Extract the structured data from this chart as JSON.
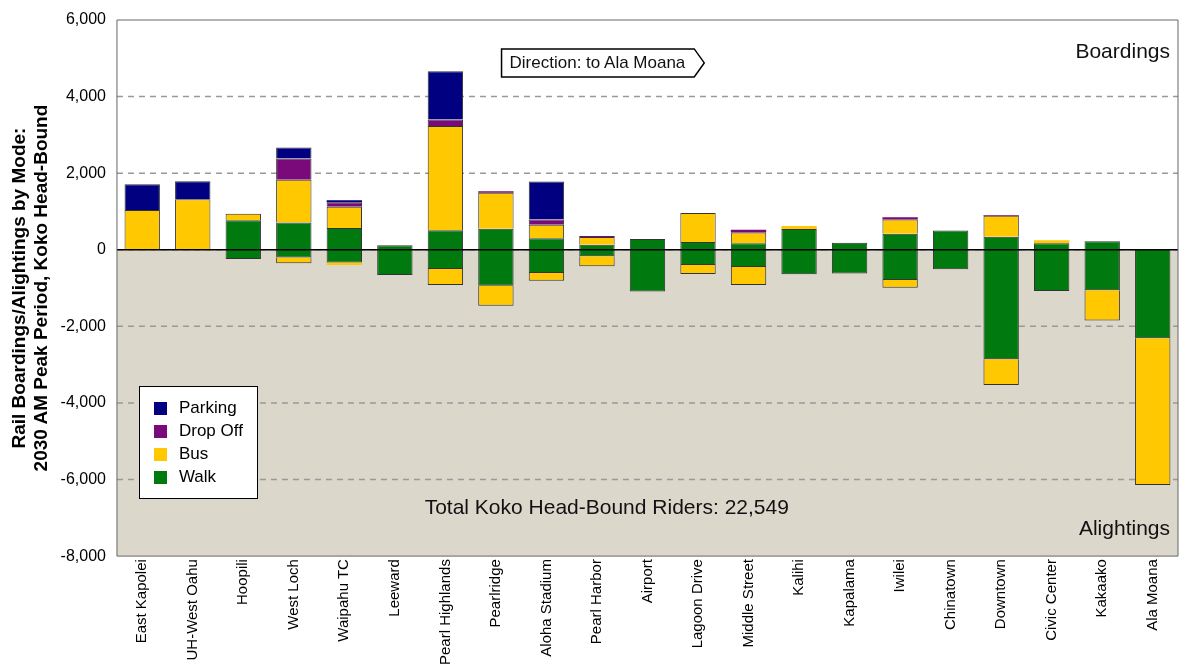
{
  "chart_data": {
    "type": "bar",
    "stacked": true,
    "ylabel": "Rail Boardings/Alightings by Mode:\n2030 AM Peak Period, Koko Head-Bound",
    "categories": [
      "East Kapolei",
      "UH-West Oahu",
      "Hoopili",
      "West Loch",
      "Waipahu TC",
      "Leeward",
      "Pearl Highlands",
      "Pearlridge",
      "Aloha Stadium",
      "Pearl Harbor",
      "Airport",
      "Lagoon Drive",
      "Middle Street",
      "Kalihi",
      "Kapalama",
      "Iwilei",
      "Chinatown",
      "Downtown",
      "Civic Center",
      "Kakaako",
      "Ala Moana"
    ],
    "series": [
      {
        "name": "Walk",
        "color": "#007a0e",
        "values": [
          null,
          null,
          770,
          710,
          570,
          120,
          510,
          550,
          300,
          130,
          280,
          200,
          170,
          540,
          180,
          420,
          500,
          340,
          170,
          220,
          20
        ]
      },
      {
        "name": "Bus",
        "color": "#ffc800",
        "values": [
          1040,
          1320,
          170,
          1120,
          550,
          0,
          2720,
          940,
          350,
          200,
          0,
          760,
          280,
          80,
          0,
          370,
          null,
          550,
          80,
          0,
          0
        ]
      },
      {
        "name": "Drop Off",
        "color": "#7a0a7a",
        "values": [
          0,
          null,
          0,
          550,
          120,
          0,
          170,
          40,
          140,
          30,
          0,
          0,
          70,
          0,
          0,
          60,
          0,
          20,
          0,
          0,
          0
        ]
      },
      {
        "name": "Parking",
        "color": "#000080",
        "values": [
          670,
          470,
          0,
          290,
          50,
          0,
          1260,
          0,
          990,
          0,
          0,
          0,
          0,
          0,
          0,
          0,
          0,
          0,
          0,
          0,
          0
        ]
      },
      {
        "color": "#007a0e",
        "values": [
          null,
          null,
          -240,
          -200,
          -330,
          -660,
          -500,
          -940,
          -610,
          -170,
          -1090,
          -400,
          -450,
          -640,
          -620,
          -790,
          -510,
          -2860,
          -1080,
          -1060,
          -2310
        ]
      },
      {
        "color": "#ffc800",
        "values": [
          0,
          0,
          0,
          -150,
          -70,
          0,
          -420,
          -520,
          -200,
          -260,
          0,
          -230,
          -470,
          0,
          0,
          -200,
          0,
          -670,
          0,
          -790,
          -3830
        ]
      }
    ],
    "ylim": [
      -8000,
      6000
    ],
    "yticks": [
      {
        "value": -8000,
        "label": "-8,000"
      },
      {
        "value": -6000,
        "label": "-6,000"
      },
      {
        "value": -4000,
        "label": "-4,000"
      },
      {
        "value": -2000,
        "label": "-2,000"
      },
      0,
      {
        "value": 2000,
        "label": "2,000"
      },
      {
        "value": 4000,
        "label": "4,000"
      },
      {
        "value": 6000,
        "label": "6,000"
      }
    ],
    "grid": "y",
    "line_style": "dashed",
    "bands": [
      {
        "axis": "y",
        "from": -8000,
        "to": 0,
        "color": "#dcd7cb"
      }
    ],
    "ref_lines": [
      {
        "axis": "y",
        "value": 0,
        "color": "#000000"
      }
    ],
    "legend": "bottom left",
    "annotations": [
      "Direction: to Ala Moana",
      "Boardings",
      "Alightings",
      "Total Koko Head-Bound Riders: 22,549"
    ]
  }
}
